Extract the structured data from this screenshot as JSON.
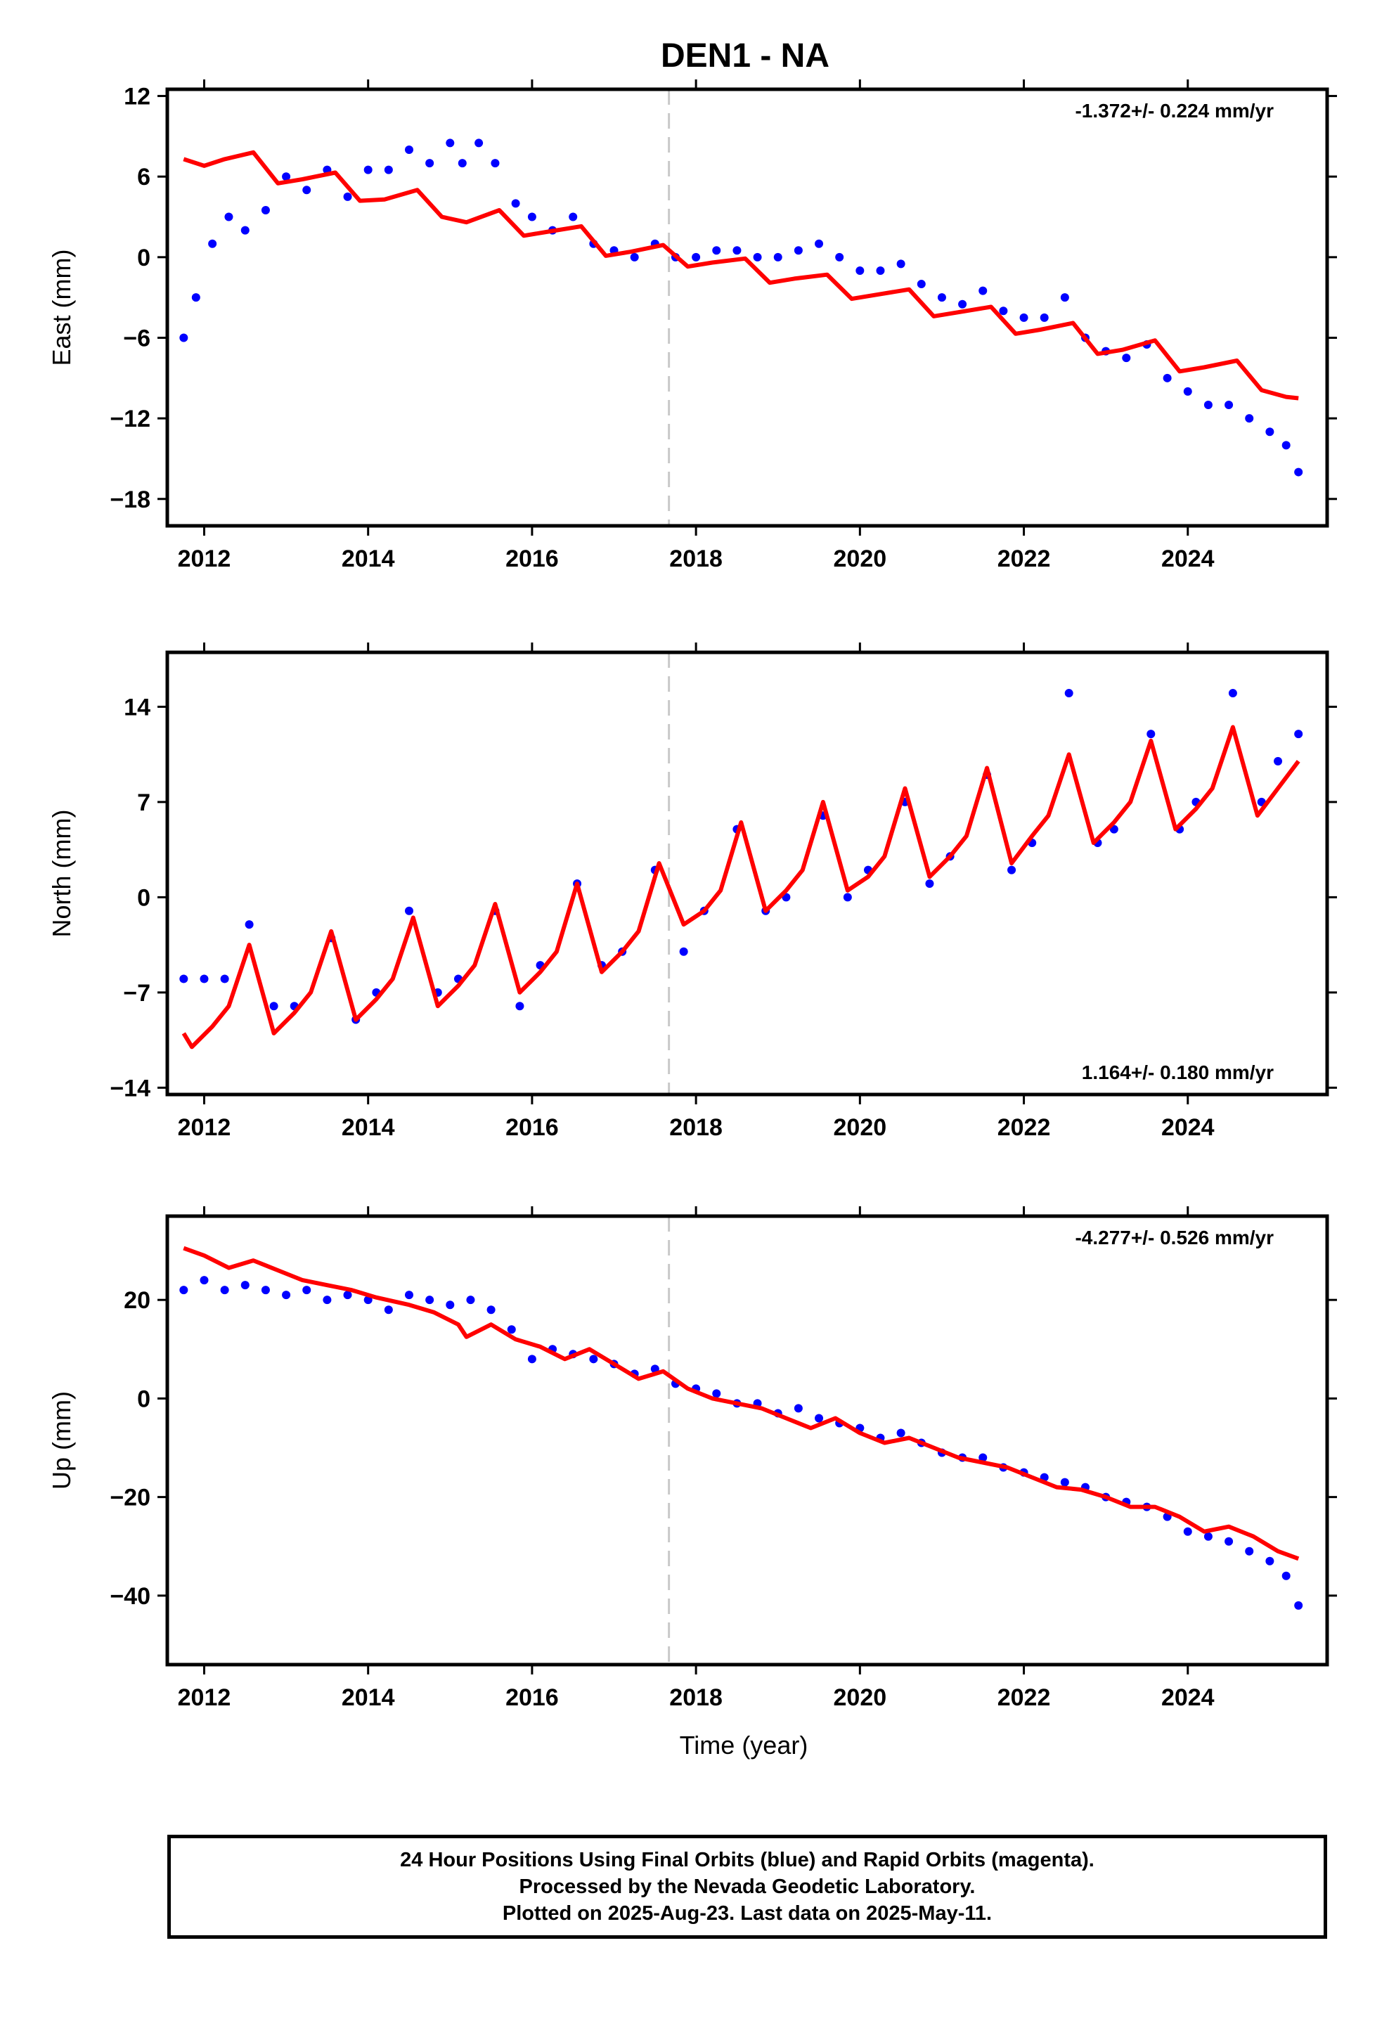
{
  "title": "DEN1 - NA",
  "colors": {
    "points": "#0000ff",
    "fit": "#ff0000",
    "reference_line": "#c8c8c8"
  },
  "xlabel": "Time (year)",
  "xticks": [
    "2012",
    "2014",
    "2016",
    "2018",
    "2020",
    "2022",
    "2024"
  ],
  "reference_line_year": 2017.67,
  "footer": {
    "line1": "24 Hour Positions Using Final Orbits (blue) and Rapid Orbits (magenta).",
    "line2": "Processed by the Nevada Geodetic Laboratory.",
    "line3": "Plotted on 2025-Aug-23. Last data on 2025-May-11."
  },
  "chart_data": [
    {
      "type": "scatter",
      "ylabel": "East (mm)",
      "rate": "-1.372+/- 0.224 mm/yr",
      "rate_position": "top-right",
      "xlim": [
        2011.55,
        2025.7
      ],
      "ylim": [
        -20,
        12.5
      ],
      "yticks": [
        12,
        6,
        0,
        -6,
        -12,
        -18
      ],
      "scatter": {
        "name": "daily positions",
        "x": [
          2011.75,
          2011.9,
          2012.1,
          2012.3,
          2012.5,
          2012.75,
          2013.0,
          2013.25,
          2013.5,
          2013.75,
          2014.0,
          2014.25,
          2014.5,
          2014.75,
          2015.0,
          2015.15,
          2015.35,
          2015.55,
          2015.8,
          2016.0,
          2016.25,
          2016.5,
          2016.75,
          2017.0,
          2017.25,
          2017.5,
          2017.75,
          2018.0,
          2018.25,
          2018.5,
          2018.75,
          2019.0,
          2019.25,
          2019.5,
          2019.75,
          2020.0,
          2020.25,
          2020.5,
          2020.75,
          2021.0,
          2021.25,
          2021.5,
          2021.75,
          2022.0,
          2022.25,
          2022.5,
          2022.75,
          2023.0,
          2023.25,
          2023.5,
          2023.75,
          2024.0,
          2024.25,
          2024.5,
          2024.75,
          2025.0,
          2025.2,
          2025.35
        ],
        "y": [
          -6,
          -3,
          1,
          3,
          2,
          3.5,
          6,
          5,
          6.5,
          4.5,
          6.5,
          6.5,
          8,
          7,
          8.5,
          7,
          8.5,
          7,
          4,
          3,
          2,
          3,
          1,
          0.5,
          0,
          1,
          0,
          0,
          0.5,
          0.5,
          0,
          0,
          0.5,
          1,
          0,
          -1,
          -1,
          -0.5,
          -2,
          -3,
          -3.5,
          -2.5,
          -4,
          -4.5,
          -4.5,
          -3,
          -6,
          -7,
          -7.5,
          -6.5,
          -9,
          -10,
          -11,
          -11,
          -12,
          -13,
          -14,
          -16
        ]
      },
      "fit": {
        "name": "model",
        "x": [
          2011.75,
          2012.0,
          2012.25,
          2012.6,
          2012.9,
          2013.2,
          2013.6,
          2013.9,
          2014.2,
          2014.6,
          2014.9,
          2015.2,
          2015.6,
          2015.9,
          2016.2,
          2016.6,
          2016.9,
          2017.2,
          2017.6,
          2017.9,
          2018.2,
          2018.6,
          2018.9,
          2019.2,
          2019.6,
          2019.9,
          2020.2,
          2020.6,
          2020.9,
          2021.2,
          2021.6,
          2021.9,
          2022.2,
          2022.6,
          2022.9,
          2023.2,
          2023.6,
          2023.9,
          2024.2,
          2024.6,
          2024.9,
          2025.2,
          2025.35
        ],
        "y": [
          7.3,
          6.8,
          7.3,
          7.8,
          5.5,
          5.8,
          6.3,
          4.2,
          4.3,
          5.0,
          3.0,
          2.6,
          3.5,
          1.6,
          1.9,
          2.3,
          0.1,
          0.4,
          0.9,
          -0.7,
          -0.4,
          -0.1,
          -1.9,
          -1.6,
          -1.3,
          -3.1,
          -2.8,
          -2.4,
          -4.4,
          -4.1,
          -3.7,
          -5.7,
          -5.4,
          -4.9,
          -7.2,
          -6.9,
          -6.2,
          -8.5,
          -8.2,
          -7.7,
          -9.9,
          -10.4,
          -10.5
        ]
      }
    },
    {
      "type": "scatter",
      "ylabel": "North (mm)",
      "rate": "1.164+/- 0.180 mm/yr",
      "rate_position": "bottom-right",
      "xlim": [
        2011.55,
        2025.7
      ],
      "ylim": [
        -14.5,
        18
      ],
      "yticks": [
        14,
        7,
        0,
        -7,
        -14
      ],
      "scatter": {
        "name": "daily positions",
        "x": [
          2011.75,
          2012.0,
          2012.25,
          2012.55,
          2012.85,
          2013.1,
          2013.55,
          2013.85,
          2014.1,
          2014.5,
          2014.85,
          2015.1,
          2015.55,
          2015.85,
          2016.1,
          2016.55,
          2016.85,
          2017.1,
          2017.5,
          2017.85,
          2018.1,
          2018.5,
          2018.85,
          2019.1,
          2019.55,
          2019.85,
          2020.1,
          2020.55,
          2020.85,
          2021.1,
          2021.55,
          2021.85,
          2022.1,
          2022.55,
          2022.9,
          2023.1,
          2023.55,
          2023.9,
          2024.1,
          2024.55,
          2024.9,
          2025.1,
          2025.35
        ],
        "y": [
          -6,
          -6,
          -6,
          -2,
          -8,
          -8,
          -3,
          -9,
          -7,
          -1,
          -7,
          -6,
          -1,
          -8,
          -5,
          1,
          -5,
          -4,
          2,
          -4,
          -1,
          5,
          -1,
          0,
          6,
          0,
          2,
          7,
          1,
          3,
          9,
          2,
          4,
          15,
          4,
          5,
          12,
          5,
          7,
          15,
          7,
          10,
          12
        ]
      },
      "fit": {
        "name": "model",
        "x": [
          2011.75,
          2011.85,
          2012.1,
          2012.3,
          2012.55,
          2012.85,
          2013.1,
          2013.3,
          2013.55,
          2013.85,
          2014.1,
          2014.3,
          2014.55,
          2014.85,
          2015.1,
          2015.3,
          2015.55,
          2015.85,
          2016.1,
          2016.3,
          2016.55,
          2016.85,
          2017.1,
          2017.3,
          2017.55,
          2017.85,
          2018.1,
          2018.3,
          2018.55,
          2018.85,
          2019.1,
          2019.3,
          2019.55,
          2019.85,
          2020.1,
          2020.3,
          2020.55,
          2020.85,
          2021.1,
          2021.3,
          2021.55,
          2021.85,
          2022.1,
          2022.3,
          2022.55,
          2022.85,
          2023.1,
          2023.3,
          2023.55,
          2023.85,
          2024.1,
          2024.3,
          2024.55,
          2024.85,
          2025.1,
          2025.35
        ],
        "y": [
          -10,
          -11,
          -9.5,
          -8,
          -3.5,
          -10,
          -8.5,
          -7,
          -2.5,
          -9,
          -7.5,
          -6,
          -1.5,
          -8,
          -6.5,
          -5,
          -0.5,
          -7,
          -5.5,
          -4,
          1,
          -5.5,
          -4,
          -2.5,
          2.5,
          -2,
          -1,
          0.5,
          5.5,
          -1,
          0.5,
          2,
          7,
          0.5,
          1.5,
          3,
          8,
          1.5,
          3,
          4.5,
          9.5,
          2.5,
          4.5,
          6,
          10.5,
          4,
          5.5,
          7,
          11.5,
          5,
          6.5,
          8,
          12.5,
          6,
          8,
          10
        ]
      }
    },
    {
      "type": "scatter",
      "ylabel": "Up (mm)",
      "rate": "-4.277+/- 0.526 mm/yr",
      "rate_position": "top-right",
      "xlim": [
        2011.55,
        2025.7
      ],
      "ylim": [
        -54,
        37
      ],
      "yticks": [
        20,
        0,
        -20,
        -40
      ],
      "xlabel": "Time (year)",
      "scatter": {
        "name": "daily positions",
        "x": [
          2011.75,
          2012.0,
          2012.25,
          2012.5,
          2012.75,
          2013.0,
          2013.25,
          2013.5,
          2013.75,
          2014.0,
          2014.25,
          2014.5,
          2014.75,
          2015.0,
          2015.25,
          2015.5,
          2015.75,
          2016.0,
          2016.25,
          2016.5,
          2016.75,
          2017.0,
          2017.25,
          2017.5,
          2017.75,
          2018.0,
          2018.25,
          2018.5,
          2018.75,
          2019.0,
          2019.25,
          2019.5,
          2019.75,
          2020.0,
          2020.25,
          2020.5,
          2020.75,
          2021.0,
          2021.25,
          2021.5,
          2021.75,
          2022.0,
          2022.25,
          2022.5,
          2022.75,
          2023.0,
          2023.25,
          2023.5,
          2023.75,
          2024.0,
          2024.25,
          2024.5,
          2024.75,
          2025.0,
          2025.2,
          2025.35
        ],
        "y": [
          22,
          24,
          22,
          23,
          22,
          21,
          22,
          20,
          21,
          20,
          18,
          21,
          20,
          19,
          20,
          18,
          14,
          8,
          10,
          9,
          8,
          7,
          5,
          6,
          3,
          2,
          1,
          -1,
          -1,
          -3,
          -2,
          -4,
          -5,
          -6,
          -8,
          -7,
          -9,
          -11,
          -12,
          -12,
          -14,
          -15,
          -16,
          -17,
          -18,
          -20,
          -21,
          -22,
          -24,
          -27,
          -28,
          -29,
          -31,
          -33,
          -36,
          -42
        ]
      },
      "fit": {
        "name": "model",
        "x": [
          2011.75,
          2012.0,
          2012.3,
          2012.6,
          2012.9,
          2013.2,
          2013.5,
          2013.8,
          2014.1,
          2014.5,
          2014.8,
          2015.1,
          2015.2,
          2015.5,
          2015.8,
          2016.1,
          2016.4,
          2016.7,
          2017.0,
          2017.3,
          2017.6,
          2017.9,
          2018.2,
          2018.5,
          2018.8,
          2019.1,
          2019.4,
          2019.7,
          2020.0,
          2020.3,
          2020.6,
          2020.9,
          2021.2,
          2021.5,
          2021.8,
          2022.1,
          2022.4,
          2022.7,
          2023.0,
          2023.3,
          2023.6,
          2023.9,
          2024.2,
          2024.5,
          2024.8,
          2025.1,
          2025.35
        ],
        "y": [
          30.5,
          29,
          26.5,
          28,
          26,
          24,
          23,
          22,
          20.5,
          19,
          17.5,
          15,
          12.5,
          15,
          12,
          10.5,
          8,
          10,
          7,
          4,
          5.5,
          2,
          0,
          -1,
          -2,
          -4,
          -6,
          -4,
          -7,
          -9,
          -8,
          -10,
          -12,
          -13,
          -14,
          -16,
          -18,
          -18.5,
          -20,
          -22,
          -22,
          -24,
          -27,
          -26,
          -28,
          -31,
          -32.5
        ]
      }
    }
  ]
}
